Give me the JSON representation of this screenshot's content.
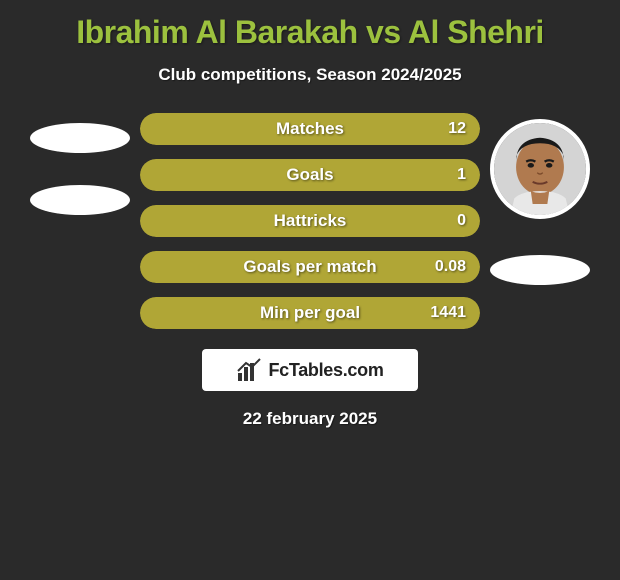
{
  "title": {
    "text": "Ibrahim Al Barakah vs Al Shehri",
    "color": "#9cc13e"
  },
  "subtitle": "Club competitions, Season 2024/2025",
  "bars": [
    {
      "label": "Matches",
      "value": "12",
      "fill_color": "#b0a636",
      "fill_width_pct": 100
    },
    {
      "label": "Goals",
      "value": "1",
      "fill_color": "#b0a636",
      "fill_width_pct": 100
    },
    {
      "label": "Hattricks",
      "value": "0",
      "fill_color": "#b0a636",
      "fill_width_pct": 100
    },
    {
      "label": "Goals per match",
      "value": "0.08",
      "fill_color": "#b0a636",
      "fill_width_pct": 100
    },
    {
      "label": "Min per goal",
      "value": "1441",
      "fill_color": "#b0a636",
      "fill_width_pct": 100
    }
  ],
  "branding": {
    "text": "FcTables.com"
  },
  "date": "22 february 2025",
  "colors": {
    "background": "#2a2a2a",
    "placeholder": "#ffffff",
    "avatar_border": "#ffffff"
  }
}
